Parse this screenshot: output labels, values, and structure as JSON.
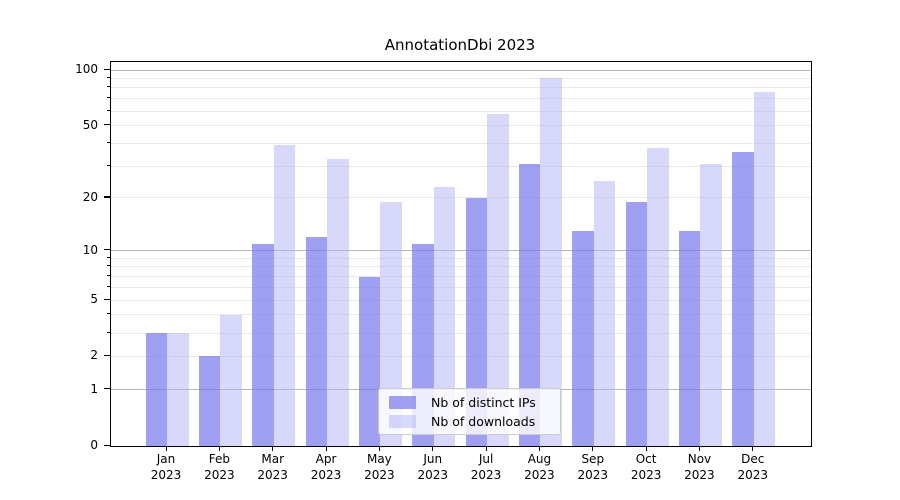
{
  "chart_data": {
    "type": "bar",
    "title": "AnnotationDbi 2023",
    "year_label": "2023",
    "categories": [
      "Jan",
      "Feb",
      "Mar",
      "Apr",
      "May",
      "Jun",
      "Jul",
      "Aug",
      "Sep",
      "Oct",
      "Nov",
      "Dec"
    ],
    "series": [
      {
        "name": "Nb of distinct IPs",
        "color": "rgba(124,124,238,0.72)",
        "values": [
          3,
          2,
          11,
          12,
          7,
          11,
          20,
          31,
          13,
          19,
          13,
          36
        ]
      },
      {
        "name": "Nb of downloads",
        "color": "rgba(178,178,245,0.5)",
        "values": [
          3,
          4,
          39,
          33,
          19,
          23,
          58,
          90,
          25,
          38,
          31,
          76
        ]
      }
    ],
    "y_axis": {
      "scale": "log1p",
      "ylim": [
        0,
        100
      ],
      "labeled_ticks": [
        0,
        1,
        2,
        5,
        10,
        20,
        50,
        100
      ],
      "major_grid": [
        1,
        10,
        100
      ],
      "minor_grid": [
        2,
        3,
        4,
        5,
        6,
        7,
        8,
        9,
        20,
        30,
        40,
        50,
        60,
        70,
        80,
        90
      ]
    },
    "x_axis": {
      "tick_line1": [
        "Jan",
        "Feb",
        "Mar",
        "Apr",
        "May",
        "Jun",
        "Jul",
        "Aug",
        "Sep",
        "Oct",
        "Nov",
        "Dec"
      ],
      "tick_line2": "2023"
    },
    "legend": {
      "position": "lower center"
    },
    "grid": true
  },
  "colors": {
    "background": "#ffffff",
    "axis": "#000000",
    "major_grid": "#b5b5b5",
    "minor_grid": "#e9e9e9",
    "bar_ips_flat": "#a3a3f2",
    "bar_downloads_flat": "#d9d9fa",
    "legend_border": "#cccccc"
  }
}
